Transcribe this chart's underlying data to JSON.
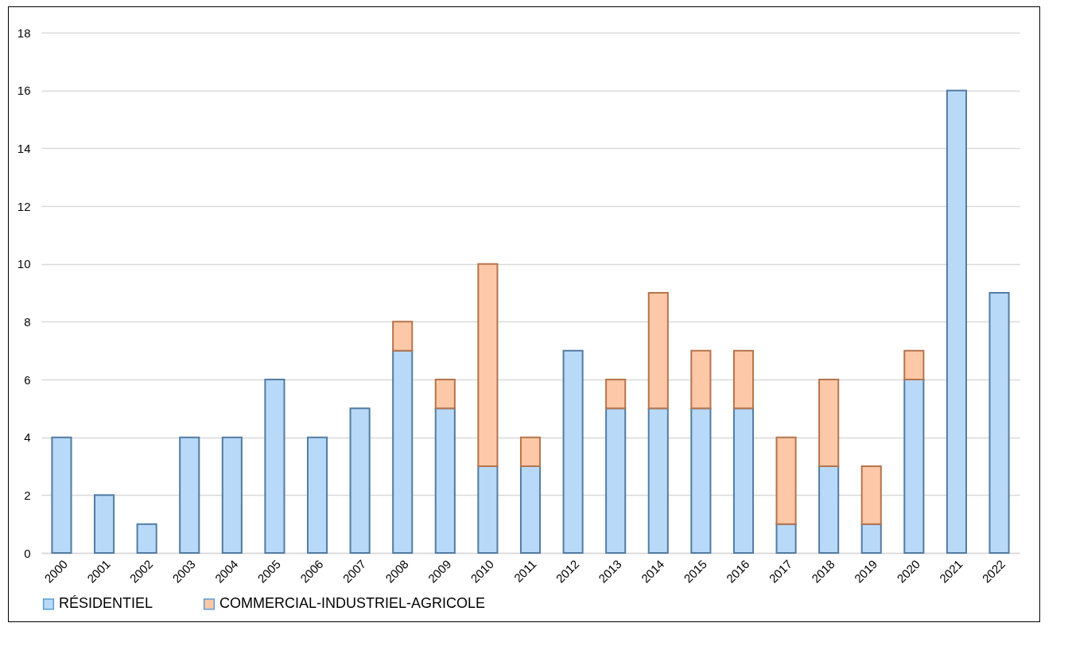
{
  "chart_data": {
    "type": "bar",
    "stacked": true,
    "categories": [
      "2000",
      "2001",
      "2002",
      "2003",
      "2004",
      "2005",
      "2006",
      "2007",
      "2008",
      "2009",
      "2010",
      "2011",
      "2012",
      "2013",
      "2014",
      "2015",
      "2016",
      "2017",
      "2018",
      "2019",
      "2020",
      "2021",
      "2022"
    ],
    "series": [
      {
        "name": "RÉSIDENTIEL",
        "color": "#b8d9f8",
        "values": [
          4,
          2,
          1,
          4,
          4,
          6,
          4,
          5,
          7,
          5,
          3,
          3,
          7,
          5,
          5,
          5,
          5,
          1,
          3,
          1,
          6,
          16,
          9
        ]
      },
      {
        "name": "COMMERCIAL-INDUSTRIEL-AGRICOLE",
        "color": "#fcc8a8",
        "values": [
          null,
          null,
          null,
          null,
          null,
          null,
          null,
          null,
          1,
          1,
          7,
          1,
          null,
          1,
          4,
          2,
          2,
          3,
          3,
          2,
          1,
          null,
          null
        ]
      }
    ],
    "ylim": [
      0,
      18
    ],
    "yticks": [
      0,
      2,
      4,
      6,
      8,
      10,
      12,
      14,
      16,
      18
    ],
    "grid": "y",
    "legend": "bottom"
  }
}
